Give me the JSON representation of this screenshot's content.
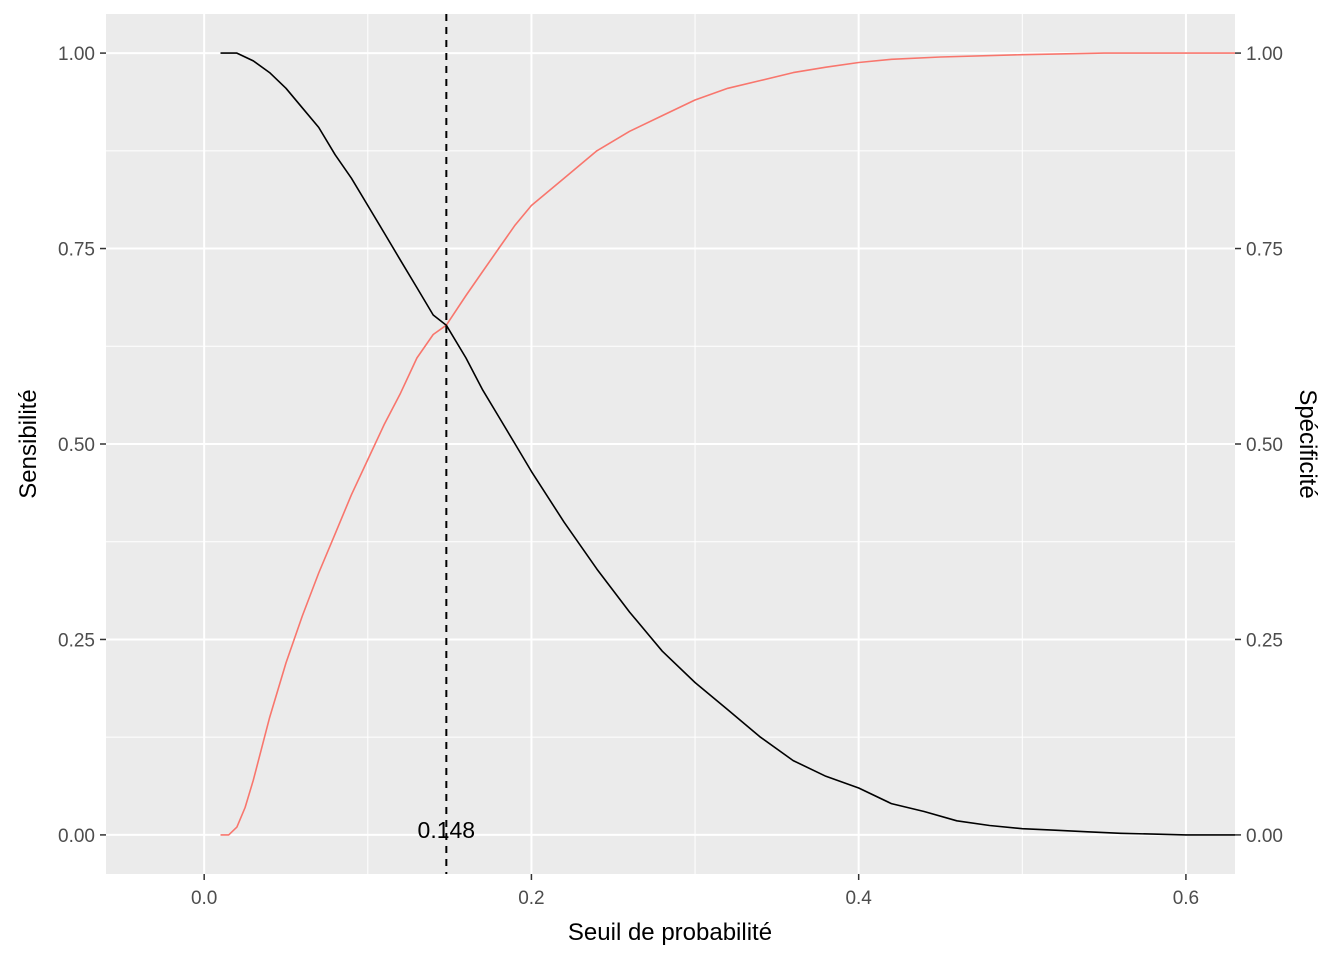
{
  "chart_data": {
    "type": "line",
    "xlabel": "Seuil de probabilité",
    "ylabel_left": "Sensibilité",
    "ylabel_right": "Spécificité",
    "xlim": [
      -0.06,
      0.63
    ],
    "ylim": [
      -0.05,
      1.05
    ],
    "x_ticks": [
      0.0,
      0.2,
      0.4,
      0.6
    ],
    "x_tick_labels": [
      "0.0",
      "0.2",
      "0.4",
      "0.6"
    ],
    "y_ticks": [
      0.0,
      0.25,
      0.5,
      0.75,
      1.0
    ],
    "y_tick_labels": [
      "0.00",
      "0.25",
      "0.50",
      "0.75",
      "1.00"
    ],
    "grid": true,
    "colors": {
      "panel": "#ebebeb",
      "grid": "#ffffff",
      "sensibilite": "#000000",
      "specificite": "#f8766d",
      "right_axis_title": "#ff0000"
    },
    "threshold": {
      "x": 0.148,
      "label": "0.148",
      "style": "dashed"
    },
    "series": [
      {
        "key": "sensibilite",
        "x": [
          0.01,
          0.02,
          0.03,
          0.04,
          0.05,
          0.06,
          0.07,
          0.08,
          0.09,
          0.1,
          0.11,
          0.12,
          0.13,
          0.14,
          0.148,
          0.16,
          0.17,
          0.18,
          0.19,
          0.2,
          0.22,
          0.24,
          0.26,
          0.28,
          0.3,
          0.32,
          0.34,
          0.36,
          0.38,
          0.4,
          0.42,
          0.44,
          0.46,
          0.48,
          0.5,
          0.52,
          0.54,
          0.56,
          0.58,
          0.6,
          0.63
        ],
        "y": [
          1.0,
          1.0,
          0.99,
          0.975,
          0.955,
          0.93,
          0.905,
          0.87,
          0.84,
          0.805,
          0.77,
          0.735,
          0.7,
          0.665,
          0.652,
          0.61,
          0.57,
          0.535,
          0.5,
          0.465,
          0.4,
          0.34,
          0.285,
          0.235,
          0.195,
          0.16,
          0.125,
          0.095,
          0.075,
          0.06,
          0.04,
          0.03,
          0.018,
          0.012,
          0.008,
          0.006,
          0.004,
          0.002,
          0.001,
          0.0,
          0.0
        ]
      },
      {
        "key": "specificite",
        "x": [
          0.01,
          0.015,
          0.02,
          0.025,
          0.03,
          0.04,
          0.05,
          0.06,
          0.07,
          0.08,
          0.09,
          0.1,
          0.11,
          0.12,
          0.13,
          0.14,
          0.148,
          0.16,
          0.17,
          0.18,
          0.19,
          0.2,
          0.22,
          0.24,
          0.26,
          0.28,
          0.3,
          0.32,
          0.34,
          0.36,
          0.38,
          0.4,
          0.42,
          0.45,
          0.5,
          0.55,
          0.6,
          0.63
        ],
        "y": [
          0.0,
          0.0,
          0.01,
          0.035,
          0.07,
          0.15,
          0.22,
          0.28,
          0.335,
          0.385,
          0.435,
          0.48,
          0.525,
          0.565,
          0.61,
          0.64,
          0.652,
          0.69,
          0.72,
          0.75,
          0.78,
          0.805,
          0.84,
          0.875,
          0.9,
          0.92,
          0.94,
          0.955,
          0.965,
          0.975,
          0.982,
          0.988,
          0.992,
          0.995,
          0.998,
          1.0,
          1.0,
          1.0
        ]
      }
    ]
  }
}
